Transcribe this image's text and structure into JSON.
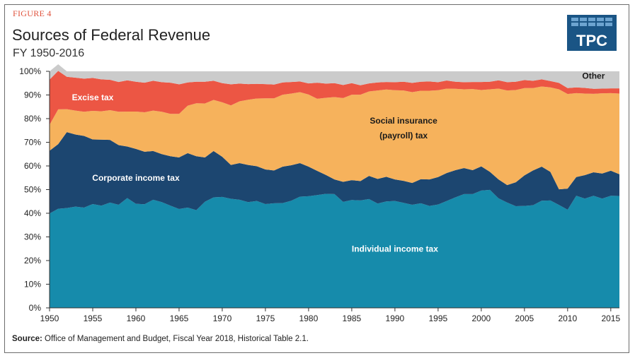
{
  "figure_label": "FIGURE 4",
  "title": "Sources of Federal Revenue",
  "subtitle": "FY 1950-2016",
  "logo_text": "TPC",
  "source": {
    "label": "Source:",
    "text": "Office of Management and Budget, Fiscal Year 2018, Historical Table 2.1."
  },
  "colors": {
    "individual": "#168bab",
    "corporate": "#1c4670",
    "social": "#f6b25c",
    "excise": "#ec5644",
    "other": "#cbcbcb",
    "logo": "#1a5585",
    "label_dark": "#1a1a1a",
    "label_light": "#ffffff"
  },
  "chart_data": {
    "type": "area",
    "stacked": true,
    "x": [
      1950,
      1951,
      1952,
      1953,
      1954,
      1955,
      1956,
      1957,
      1958,
      1959,
      1960,
      1961,
      1962,
      1963,
      1964,
      1965,
      1966,
      1967,
      1968,
      1969,
      1970,
      1971,
      1972,
      1973,
      1974,
      1975,
      1976,
      1977,
      1978,
      1979,
      1980,
      1981,
      1982,
      1983,
      1984,
      1985,
      1986,
      1987,
      1988,
      1989,
      1990,
      1991,
      1992,
      1993,
      1994,
      1995,
      1996,
      1997,
      1998,
      1999,
      2000,
      2001,
      2002,
      2003,
      2004,
      2005,
      2006,
      2007,
      2008,
      2009,
      2010,
      2011,
      2012,
      2013,
      2014,
      2015,
      2016
    ],
    "series": [
      {
        "name": "Individual income tax",
        "values": [
          39.9,
          41.9,
          42.2,
          42.8,
          42.4,
          43.9,
          43.2,
          44.5,
          43.6,
          46.4,
          44.0,
          43.8,
          45.7,
          44.7,
          43.2,
          41.8,
          42.4,
          41.3,
          44.9,
          46.7,
          46.9,
          46.1,
          45.7,
          44.7,
          45.2,
          43.9,
          44.2,
          44.3,
          45.3,
          47.0,
          47.2,
          47.7,
          48.2,
          48.1,
          44.8,
          45.6,
          45.4,
          46.0,
          44.1,
          45.0,
          45.2,
          44.4,
          43.6,
          44.2,
          43.1,
          43.7,
          45.2,
          46.7,
          48.1,
          48.1,
          49.6,
          49.9,
          46.3,
          44.5,
          43.0,
          43.1,
          43.4,
          45.3,
          45.4,
          43.5,
          41.5,
          47.4,
          46.2,
          47.4,
          46.2,
          47.4,
          47.3
        ]
      },
      {
        "name": "Corporate income tax",
        "values": [
          26.5,
          27.3,
          32.1,
          30.5,
          30.3,
          27.3,
          27.9,
          26.5,
          25.2,
          21.8,
          23.2,
          22.2,
          20.6,
          20.3,
          20.9,
          21.8,
          23.0,
          22.8,
          18.7,
          19.6,
          17.0,
          14.3,
          15.5,
          15.7,
          14.7,
          14.6,
          13.9,
          15.4,
          15.0,
          14.2,
          12.5,
          10.2,
          8.0,
          6.2,
          8.5,
          8.4,
          8.2,
          9.8,
          10.4,
          10.4,
          9.1,
          9.3,
          9.2,
          10.2,
          11.2,
          11.6,
          11.8,
          11.5,
          11.0,
          10.1,
          10.2,
          7.6,
          8.0,
          7.4,
          10.1,
          12.9,
          14.7,
          14.4,
          12.1,
          6.6,
          8.9,
          7.9,
          9.9,
          9.9,
          10.6,
          10.6,
          9.2
        ]
      },
      {
        "name": "Social insurance (payroll) tax",
        "values": [
          11.0,
          14.7,
          9.7,
          10.1,
          10.2,
          12.1,
          12.0,
          12.6,
          14.1,
          14.8,
          15.8,
          16.7,
          17.1,
          17.9,
          17.9,
          18.4,
          20.1,
          22.4,
          22.8,
          21.6,
          23.0,
          25.2,
          26.1,
          27.6,
          28.6,
          30.1,
          30.5,
          30.4,
          30.3,
          30.0,
          30.5,
          30.5,
          32.6,
          34.8,
          35.4,
          36.1,
          36.5,
          35.7,
          37.4,
          36.9,
          37.7,
          38.2,
          38.4,
          37.4,
          37.5,
          36.7,
          35.7,
          34.4,
          33.3,
          34.3,
          32.3,
          34.9,
          38.4,
          40.0,
          39.0,
          36.9,
          34.8,
          33.9,
          35.7,
          42.3,
          40.0,
          35.5,
          34.5,
          33.2,
          33.9,
          32.8,
          34.1
        ]
      },
      {
        "name": "Excise tax",
        "values": [
          19.1,
          16.3,
          13.7,
          13.9,
          14.0,
          13.9,
          13.5,
          12.8,
          12.6,
          13.2,
          12.6,
          12.5,
          12.6,
          12.5,
          13.2,
          12.5,
          9.8,
          9.1,
          9.2,
          8.1,
          8.1,
          8.9,
          7.5,
          6.6,
          6.2,
          6.0,
          5.8,
          5.2,
          4.9,
          4.5,
          4.7,
          6.8,
          6.0,
          5.9,
          5.5,
          4.9,
          4.0,
          3.4,
          3.4,
          3.2,
          3.4,
          3.7,
          3.9,
          3.8,
          3.9,
          3.4,
          3.4,
          3.0,
          3.0,
          3.0,
          3.4,
          3.2,
          3.5,
          3.5,
          3.5,
          3.4,
          3.1,
          3.0,
          2.7,
          2.7,
          2.5,
          2.4,
          2.4,
          2.1,
          2.0,
          2.0,
          2.2
        ]
      },
      {
        "name": "Other",
        "values": [
          3.5,
          2.8,
          2.3,
          2.7,
          3.1,
          2.8,
          3.4,
          3.6,
          4.5,
          3.8,
          4.4,
          4.8,
          4.0,
          4.6,
          4.8,
          5.5,
          4.7,
          4.4,
          4.4,
          4.0,
          5.0,
          5.5,
          5.2,
          5.4,
          5.3,
          5.4,
          5.6,
          4.7,
          4.5,
          4.3,
          5.1,
          4.8,
          5.2,
          5.0,
          5.8,
          5.0,
          5.9,
          5.1,
          4.7,
          4.5,
          4.6,
          4.4,
          4.9,
          4.4,
          4.3,
          4.6,
          3.9,
          4.4,
          4.6,
          4.5,
          4.5,
          4.4,
          3.8,
          4.6,
          4.4,
          3.7,
          4.0,
          3.4,
          4.1,
          4.9,
          7.1,
          6.8,
          7.0,
          7.4,
          7.3,
          7.2,
          7.2
        ]
      }
    ],
    "series_labels": [
      {
        "series": "Individual income tax",
        "lines": [
          "Individual income tax"
        ],
        "x": 1990,
        "y": 25,
        "color": "light"
      },
      {
        "series": "Corporate income tax",
        "lines": [
          "Corporate income tax"
        ],
        "x": 1960,
        "y": 55,
        "color": "light"
      },
      {
        "series": "Social insurance (payroll) tax",
        "lines": [
          "Social insurance",
          "(payroll) tax"
        ],
        "x": 1991,
        "y": 76,
        "color": "dark"
      },
      {
        "series": "Excise tax",
        "lines": [
          "Excise tax"
        ],
        "x": 1955,
        "y": 89,
        "color": "light"
      },
      {
        "series": "Other",
        "lines": [
          "Other"
        ],
        "x": 2013,
        "y": 98,
        "color": "dark"
      }
    ],
    "xticks": [
      1950,
      1955,
      1960,
      1965,
      1970,
      1975,
      1980,
      1985,
      1990,
      1995,
      2000,
      2005,
      2010,
      2015
    ],
    "yticks": [
      0,
      10,
      20,
      30,
      40,
      50,
      60,
      70,
      80,
      90,
      100
    ],
    "ytick_labels": [
      "0%",
      "10%",
      "20%",
      "30%",
      "40%",
      "50%",
      "60%",
      "70%",
      "80%",
      "90%",
      "100%"
    ],
    "xlim": [
      1950,
      2016
    ],
    "ylim": [
      0,
      100
    ],
    "grid": false,
    "legend": "none"
  }
}
